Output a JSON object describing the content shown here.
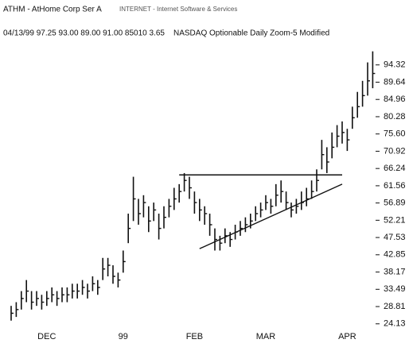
{
  "chart_data": {
    "type": "ohlc",
    "symbol": "ATHM - AtHome Corp Ser A",
    "sector": "INTERNET - Internet Software & Services",
    "quote": "04/13/99  97.25  93.00  89.00  91.00  85010  3.65",
    "info": "NASDAQ   Optionable   Daily   Zoom-5   Modified",
    "color": "#111111",
    "categories": [
      null,
      null,
      null,
      null,
      null,
      null,
      null,
      "DEC",
      null,
      null,
      null,
      null,
      null,
      null,
      null,
      null,
      null,
      null,
      null,
      null,
      null,
      null,
      "99",
      null,
      null,
      null,
      null,
      null,
      null,
      null,
      null,
      null,
      null,
      null,
      null,
      null,
      "FEB",
      null,
      null,
      null,
      null,
      null,
      null,
      null,
      null,
      null,
      null,
      null,
      null,
      null,
      "MAR",
      null,
      null,
      null,
      null,
      null,
      null,
      null,
      null,
      null,
      null,
      null,
      null,
      null,
      null,
      null,
      "APR",
      null,
      null,
      null,
      null,
      null
    ],
    "series": [
      {
        "name": "high",
        "values": [
          29,
          30,
          33,
          36,
          33,
          33,
          32,
          33,
          34,
          33,
          34,
          34,
          35,
          35,
          36,
          35,
          37,
          36,
          42,
          42,
          40,
          38,
          44,
          54,
          64,
          58,
          59,
          56,
          57,
          54,
          56,
          58,
          61,
          62,
          65,
          64,
          60,
          58,
          56,
          54,
          50,
          48,
          50,
          49,
          51,
          52,
          53,
          54,
          56,
          57,
          59,
          58,
          62,
          63,
          60,
          57,
          58,
          60,
          61,
          63,
          66,
          74,
          72,
          76,
          78,
          79,
          77,
          83,
          87,
          90,
          95,
          98
        ]
      },
      {
        "name": "low",
        "values": [
          25,
          26,
          28,
          30,
          28,
          29,
          28,
          29,
          30,
          29,
          30,
          30,
          31,
          31,
          32,
          31,
          33,
          32,
          36,
          37,
          35,
          34,
          38,
          46,
          52,
          51,
          53,
          49,
          52,
          47,
          50,
          53,
          55,
          57,
          60,
          58,
          54,
          52,
          51,
          48,
          44,
          44,
          46,
          45,
          47,
          48,
          49,
          50,
          52,
          53,
          55,
          54,
          56,
          57,
          55,
          53,
          54,
          55,
          56,
          58,
          60,
          66,
          65,
          69,
          72,
          73,
          71,
          77,
          80,
          83,
          86,
          88
        ]
      },
      {
        "name": "close",
        "values": [
          27,
          28,
          31,
          33,
          30,
          31,
          30,
          31,
          32,
          31,
          32,
          32,
          33,
          33,
          34,
          33,
          35,
          34,
          39,
          40,
          37,
          36,
          41,
          50,
          58,
          54,
          57,
          52,
          55,
          50,
          53,
          56,
          58,
          60,
          63,
          61,
          57,
          55,
          54,
          51,
          47,
          46,
          48,
          47,
          49,
          50,
          51,
          52,
          54,
          55,
          57,
          56,
          59,
          60,
          57,
          55,
          56,
          57,
          58,
          60,
          63,
          70,
          68,
          72,
          75,
          76,
          74,
          80,
          83,
          86,
          90,
          92
        ]
      }
    ],
    "trendlines": [
      {
        "x": [
          33,
          65
        ],
        "y": [
          64.5,
          64.5
        ]
      },
      {
        "x": [
          37,
          65
        ],
        "y": [
          44.5,
          62
        ]
      }
    ],
    "ylim": [
      21.5,
      99
    ],
    "yticks": [
      24.13,
      28.81,
      33.49,
      38.17,
      42.85,
      47.53,
      52.21,
      56.89,
      61.56,
      66.24,
      70.92,
      {
        "value": 75.6,
        "label": "75.60"
      },
      80.28,
      84.96,
      89.64,
      94.32
    ]
  }
}
